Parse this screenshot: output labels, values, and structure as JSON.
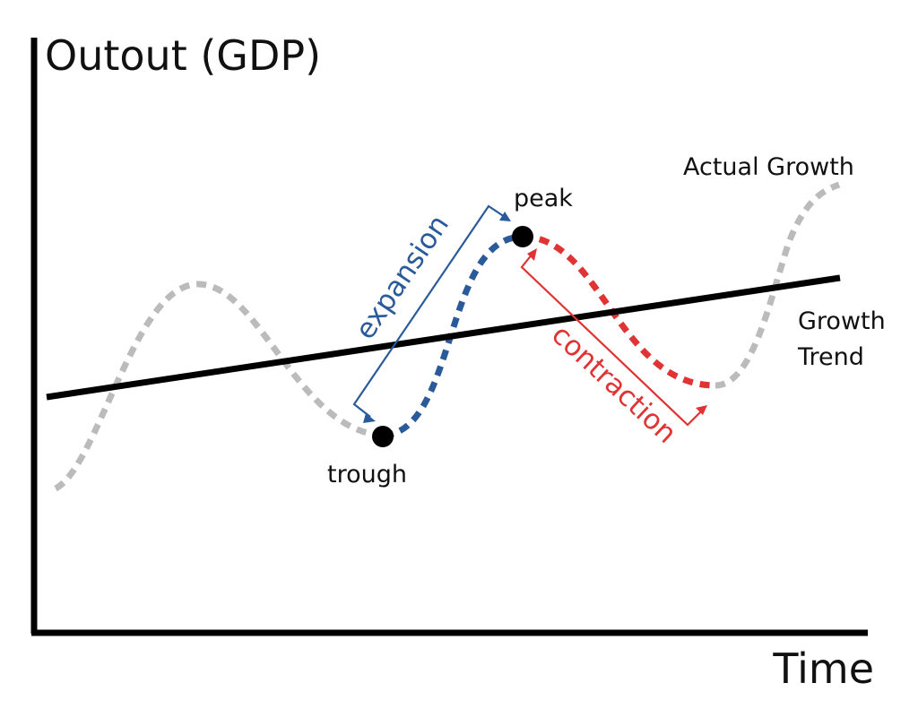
{
  "axes": {
    "y_label": "Outout (GDP)",
    "x_label": "Time"
  },
  "labels": {
    "actual_growth": "Actual Growth",
    "growth_trend_line1": "Growth",
    "growth_trend_line2": "Trend",
    "peak": "peak",
    "trough": "trough",
    "expansion": "expansion",
    "contraction": "contraction"
  },
  "colors": {
    "axis": "#000000",
    "trend": "#000000",
    "actual_growth": "#bbbbbb",
    "expansion": "#2a5a9a",
    "contraction": "#e03434",
    "marker": "#000000"
  }
}
